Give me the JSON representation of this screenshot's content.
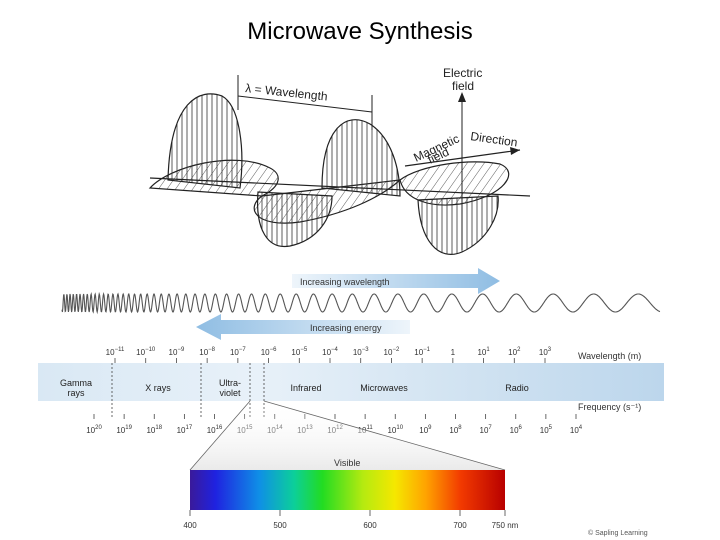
{
  "title": "Microwave Synthesis",
  "wave_diagram": {
    "wavelength_label": "λ = Wavelength",
    "electric_field_line1": "Electric",
    "electric_field_line2": "field",
    "magnetic_field_line1": "Magnetic",
    "magnetic_field_line2": "field",
    "direction_label": "Direction"
  },
  "arrows": {
    "increasing_wavelength": "Increasing wavelength",
    "increasing_energy": "Increasing energy"
  },
  "spectrum": {
    "wavelength_axis_label": "Wavelength (m)",
    "frequency_axis_label": "Frequency (s⁻¹)",
    "wavelength_ticks": [
      {
        "base": "10",
        "exp": "−11"
      },
      {
        "base": "10",
        "exp": "−10"
      },
      {
        "base": "10",
        "exp": "−9"
      },
      {
        "base": "10",
        "exp": "−8"
      },
      {
        "base": "10",
        "exp": "−7"
      },
      {
        "base": "10",
        "exp": "−6"
      },
      {
        "base": "10",
        "exp": "−5"
      },
      {
        "base": "10",
        "exp": "−4"
      },
      {
        "base": "10",
        "exp": "−3"
      },
      {
        "base": "10",
        "exp": "−2"
      },
      {
        "base": "10",
        "exp": "−1"
      },
      {
        "base": "1",
        "exp": ""
      },
      {
        "base": "10",
        "exp": "1"
      },
      {
        "base": "10",
        "exp": "2"
      },
      {
        "base": "10",
        "exp": "3"
      }
    ],
    "frequency_ticks": [
      {
        "base": "10",
        "exp": "20"
      },
      {
        "base": "10",
        "exp": "19"
      },
      {
        "base": "10",
        "exp": "18"
      },
      {
        "base": "10",
        "exp": "17"
      },
      {
        "base": "10",
        "exp": "16"
      },
      {
        "base": "10",
        "exp": "15"
      },
      {
        "base": "10",
        "exp": "14"
      },
      {
        "base": "10",
        "exp": "13"
      },
      {
        "base": "10",
        "exp": "12"
      },
      {
        "base": "10",
        "exp": "11"
      },
      {
        "base": "10",
        "exp": "10"
      },
      {
        "base": "10",
        "exp": "9"
      },
      {
        "base": "10",
        "exp": "8"
      },
      {
        "base": "10",
        "exp": "7"
      },
      {
        "base": "10",
        "exp": "6"
      },
      {
        "base": "10",
        "exp": "5"
      },
      {
        "base": "10",
        "exp": "4"
      }
    ],
    "regions": {
      "gamma_line1": "Gamma",
      "gamma_line2": "rays",
      "xrays": "X rays",
      "uv_line1": "Ultra-",
      "uv_line2": "violet",
      "infrared": "Infrared",
      "microwaves": "Microwaves",
      "radio": "Radio"
    }
  },
  "visible": {
    "label": "Visible",
    "ticks": [
      "400",
      "500",
      "600",
      "700",
      "750 nm"
    ]
  },
  "credit": "© Sapling Learning"
}
